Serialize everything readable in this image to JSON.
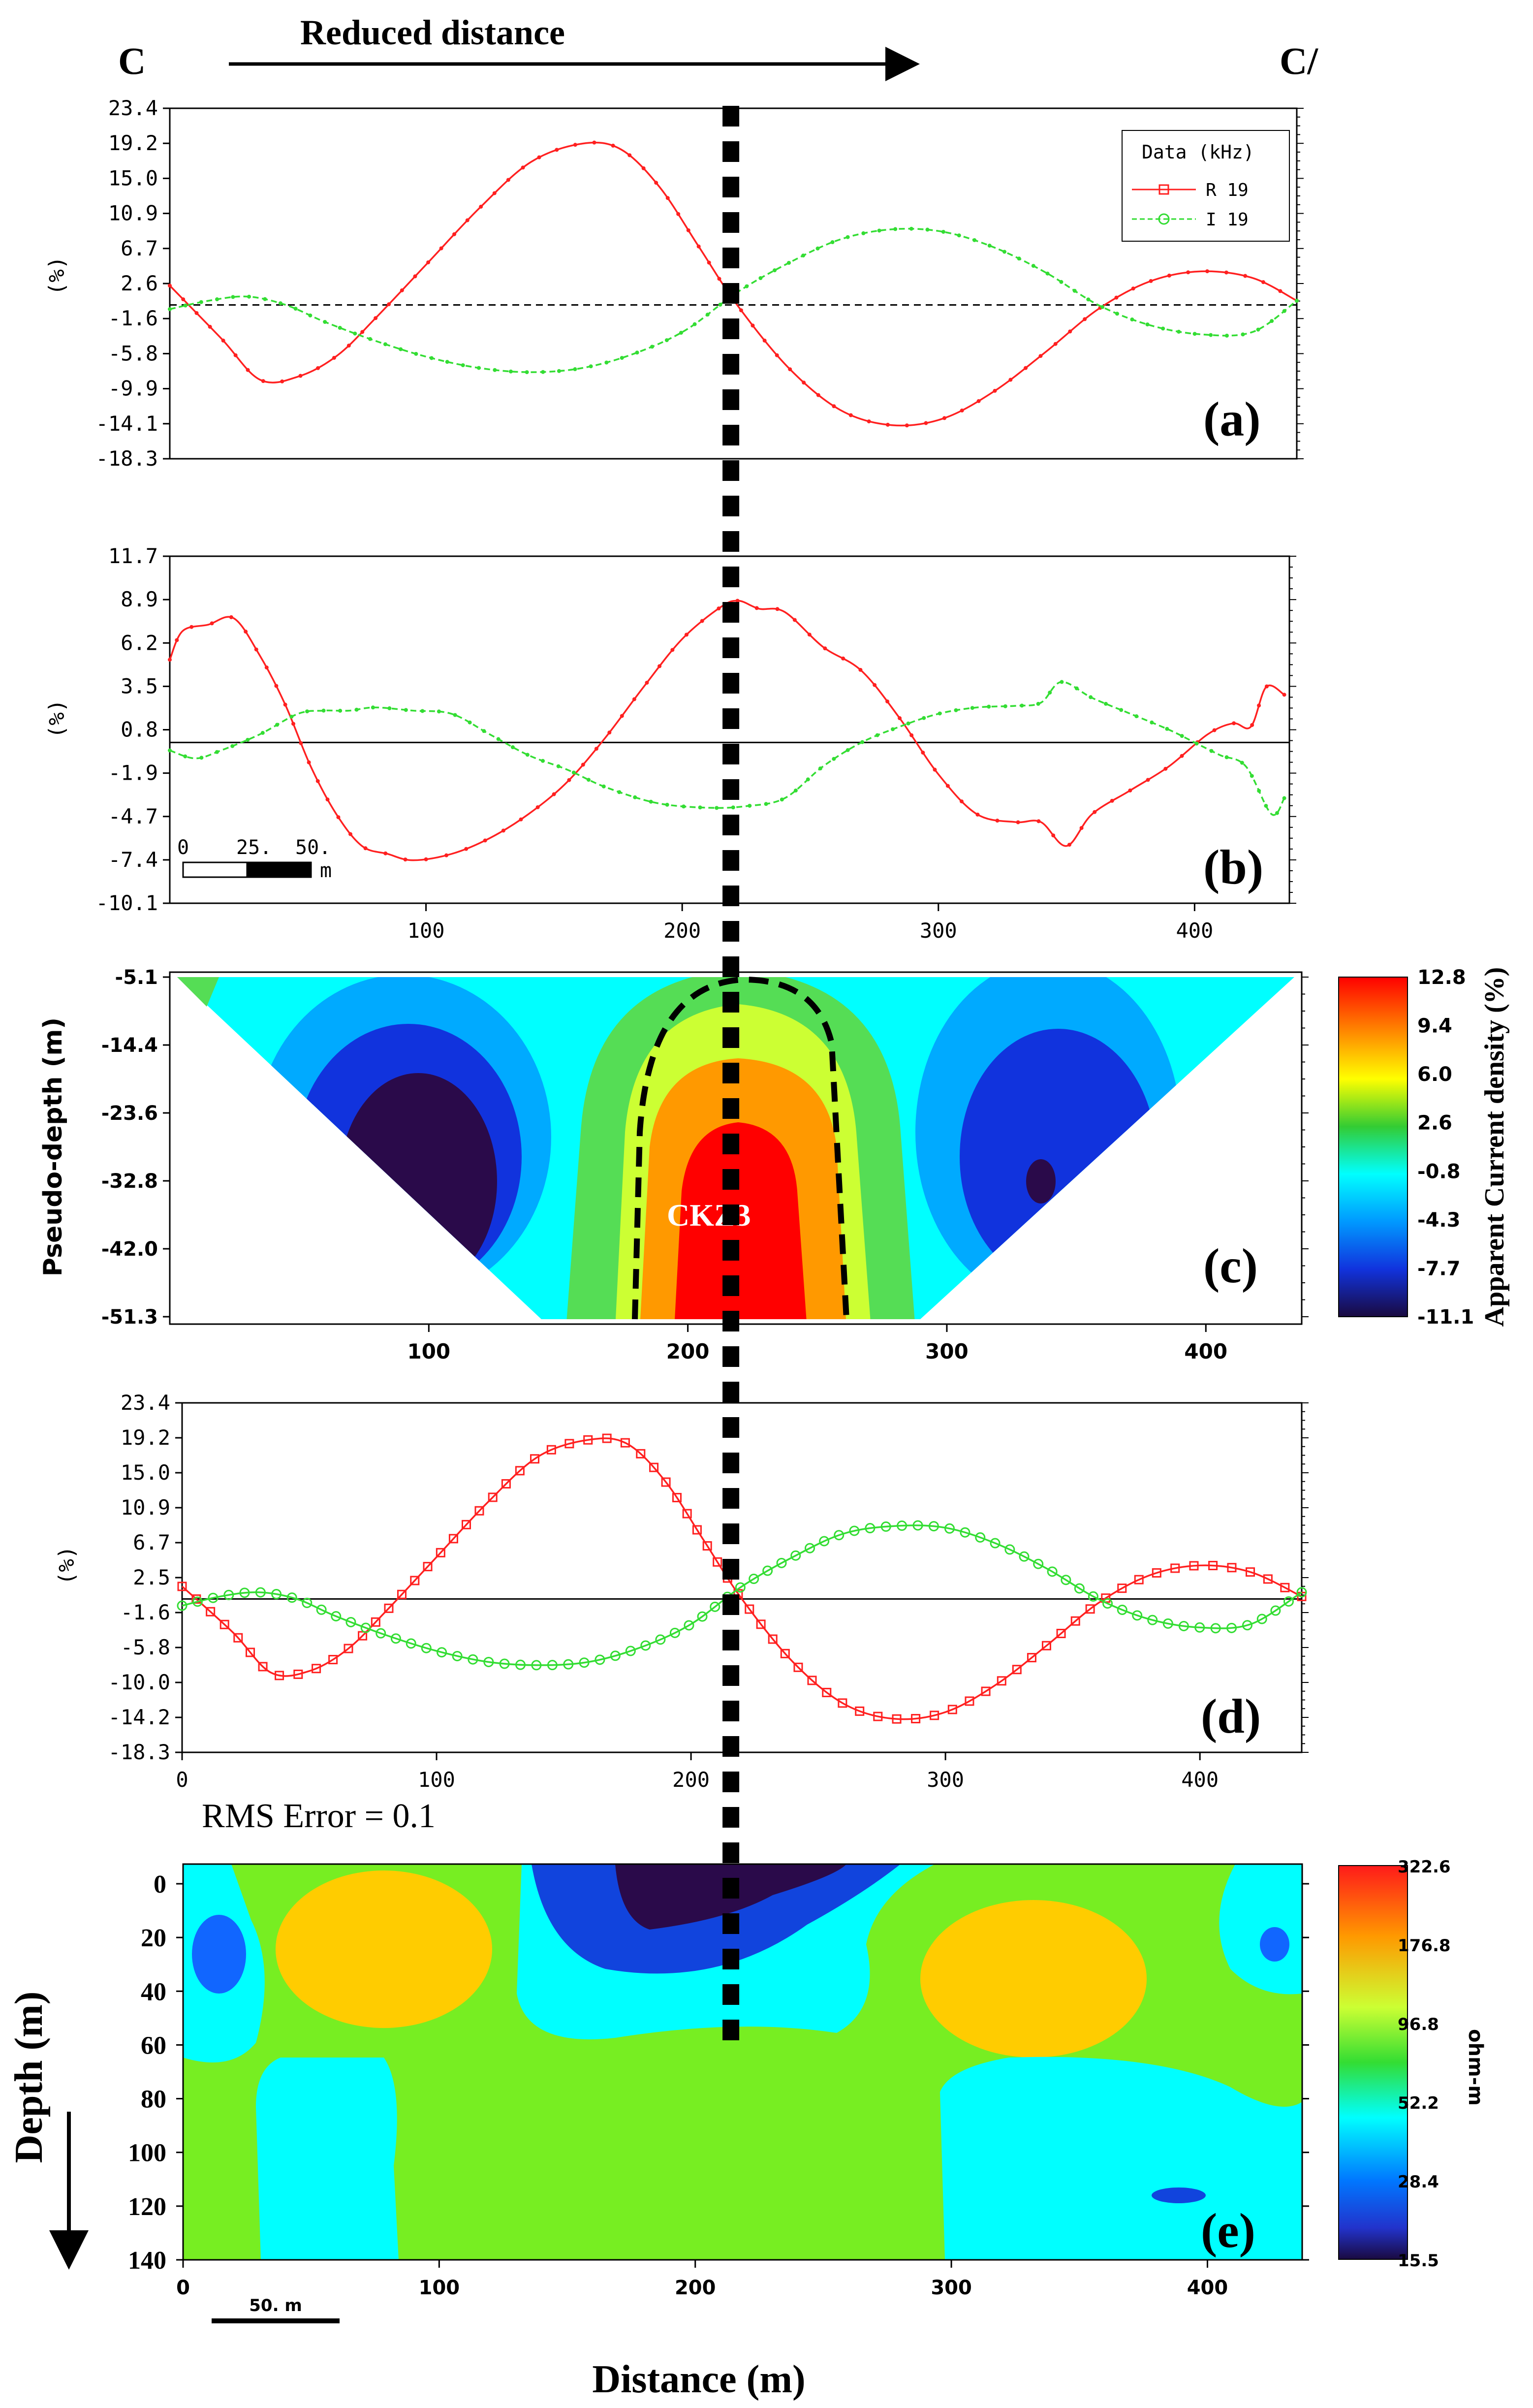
{
  "header": {
    "left_label": "C",
    "right_label": "C/",
    "arrow_label": "Reduced distance"
  },
  "colors": {
    "real": "#ff2020",
    "imag": "#33dd33",
    "marker": "#000000"
  },
  "marker_x": 219,
  "chart_data": [
    {
      "panel": "a",
      "type": "line",
      "letter": "(a)",
      "ylabel": "(%)",
      "xlim": [
        0,
        437
      ],
      "ylim": [
        -18.3,
        23.4
      ],
      "yticks": [
        "23.4",
        "19.2",
        "15.0",
        "10.9",
        "6.7",
        "2.6",
        "-1.6",
        "-5.8",
        "-9.9",
        "-14.1",
        "-18.3"
      ],
      "zero_line": "dashed",
      "legend": {
        "title": "Data (kHz)",
        "entries": [
          "R 19",
          "I 19"
        ]
      },
      "series": [
        {
          "name": "R 19",
          "color": "#ff2020",
          "points": [
            [
              0,
              2.3
            ],
            [
              20,
              -4
            ],
            [
              35,
              -8.9
            ],
            [
              50,
              -8.5
            ],
            [
              65,
              -6
            ],
            [
              80,
              -1.5
            ],
            [
              100,
              5
            ],
            [
              120,
              11.5
            ],
            [
              140,
              17
            ],
            [
              160,
              19.2
            ],
            [
              175,
              18.5
            ],
            [
              190,
              14
            ],
            [
              205,
              7
            ],
            [
              220,
              0
            ],
            [
              240,
              -7.5
            ],
            [
              260,
              -12.5
            ],
            [
              280,
              -14.3
            ],
            [
              300,
              -13.5
            ],
            [
              320,
              -10.2
            ],
            [
              340,
              -5.5
            ],
            [
              360,
              -0.5
            ],
            [
              380,
              2.8
            ],
            [
              400,
              4
            ],
            [
              420,
              3.2
            ],
            [
              437,
              0.5
            ]
          ]
        },
        {
          "name": "I 19",
          "color": "#33dd33",
          "points": [
            [
              0,
              -0.5
            ],
            [
              15,
              0.5
            ],
            [
              30,
              1
            ],
            [
              45,
              0
            ],
            [
              60,
              -2
            ],
            [
              80,
              -4.3
            ],
            [
              100,
              -6.2
            ],
            [
              120,
              -7.5
            ],
            [
              140,
              -8
            ],
            [
              160,
              -7.5
            ],
            [
              180,
              -5.8
            ],
            [
              200,
              -3
            ],
            [
              220,
              1.5
            ],
            [
              240,
              5
            ],
            [
              260,
              7.8
            ],
            [
              280,
              9
            ],
            [
              300,
              8.7
            ],
            [
              320,
              6.8
            ],
            [
              340,
              3.8
            ],
            [
              360,
              0
            ],
            [
              380,
              -2.4
            ],
            [
              400,
              -3.5
            ],
            [
              420,
              -3.2
            ],
            [
              437,
              0.5
            ]
          ]
        }
      ]
    },
    {
      "panel": "b",
      "type": "line",
      "letter": "(b)",
      "ylabel": "(%)",
      "xlim": [
        0,
        437
      ],
      "ylim": [
        -10.1,
        11.7
      ],
      "yticks": [
        "11.7",
        "8.9",
        "6.2",
        "3.5",
        "0.8",
        "-1.9",
        "-4.7",
        "-7.4",
        "-10.1"
      ],
      "xticks": [
        100,
        200,
        300,
        400
      ],
      "zero_line": "solid",
      "scale_bar": {
        "labels": [
          "0",
          "25.",
          "50."
        ],
        "unit": "m"
      },
      "series": [
        {
          "name": "R",
          "color": "#ff2020",
          "points": [
            [
              0,
              5.2
            ],
            [
              5,
              7
            ],
            [
              15,
              7.4
            ],
            [
              25,
              7.8
            ],
            [
              35,
              5.5
            ],
            [
              45,
              2.4
            ],
            [
              55,
              -1.5
            ],
            [
              65,
              -4.5
            ],
            [
              75,
              -6.5
            ],
            [
              85,
              -7
            ],
            [
              95,
              -7.4
            ],
            [
              110,
              -7
            ],
            [
              125,
              -6
            ],
            [
              140,
              -4.5
            ],
            [
              155,
              -2.5
            ],
            [
              170,
              0.3
            ],
            [
              185,
              3.5
            ],
            [
              200,
              6.5
            ],
            [
              215,
              8.5
            ],
            [
              222,
              8.9
            ],
            [
              230,
              8.4
            ],
            [
              240,
              8.2
            ],
            [
              255,
              6
            ],
            [
              270,
              4.5
            ],
            [
              285,
              1.5
            ],
            [
              300,
              -2
            ],
            [
              315,
              -4.5
            ],
            [
              330,
              -5
            ],
            [
              340,
              -5
            ],
            [
              350,
              -6.5
            ],
            [
              360,
              -4.5
            ],
            [
              375,
              -3
            ],
            [
              390,
              -1.5
            ],
            [
              405,
              0.5
            ],
            [
              415,
              1.2
            ],
            [
              422,
              1
            ],
            [
              428,
              3.5
            ],
            [
              435,
              3
            ]
          ]
        },
        {
          "name": "I",
          "color": "#33dd33",
          "points": [
            [
              0,
              -0.5
            ],
            [
              10,
              -1
            ],
            [
              20,
              -0.5
            ],
            [
              35,
              0.5
            ],
            [
              50,
              1.8
            ],
            [
              60,
              2
            ],
            [
              70,
              2
            ],
            [
              80,
              2.2
            ],
            [
              95,
              2
            ],
            [
              110,
              1.8
            ],
            [
              125,
              0.5
            ],
            [
              140,
              -0.8
            ],
            [
              155,
              -1.7
            ],
            [
              170,
              -2.8
            ],
            [
              190,
              -3.8
            ],
            [
              210,
              -4.1
            ],
            [
              225,
              -4
            ],
            [
              240,
              -3.5
            ],
            [
              255,
              -1.5
            ],
            [
              270,
              0
            ],
            [
              285,
              1
            ],
            [
              300,
              1.8
            ],
            [
              315,
              2.2
            ],
            [
              330,
              2.3
            ],
            [
              340,
              2.5
            ],
            [
              348,
              3.8
            ],
            [
              360,
              2.8
            ],
            [
              375,
              1.8
            ],
            [
              390,
              0.8
            ],
            [
              400,
              0
            ],
            [
              410,
              -0.8
            ],
            [
              420,
              -1.5
            ],
            [
              430,
              -4.5
            ],
            [
              435,
              -3.5
            ]
          ]
        }
      ]
    },
    {
      "panel": "c",
      "type": "heatmap",
      "letter": "(c)",
      "ylabel": "Pseudo-depth (m)",
      "yticks": [
        "-5.1",
        "-14.4",
        "-23.6",
        "-32.8",
        "-42.0",
        "-51.3"
      ],
      "xticks": [
        100,
        200,
        300,
        400
      ],
      "annotation": "CKZ3",
      "colorbar_title": "Apparent Current density (%)",
      "colorbar_ticks": [
        "12.8",
        "9.4",
        "6.0",
        "2.6",
        "-0.8",
        "-4.3",
        "-7.7",
        "-11.1"
      ]
    },
    {
      "panel": "d",
      "type": "line",
      "letter": "(d)",
      "ylabel": "(%)",
      "xlim": [
        0,
        440
      ],
      "ylim": [
        -18.3,
        23.4
      ],
      "yticks": [
        "23.4",
        "19.2",
        "15.0",
        "10.9",
        "6.7",
        "2.5",
        "-1.6",
        "-5.8",
        "-10.0",
        "-14.2",
        "-18.3"
      ],
      "xticks": [
        0,
        100,
        200,
        300,
        400
      ],
      "zero_line": "solid",
      "rms_text": "RMS Error = 0.1",
      "series": [
        {
          "name": "R",
          "color": "#ff2020",
          "points": [
            [
              0,
              1.5
            ],
            [
              20,
              -4
            ],
            [
              35,
              -8.8
            ],
            [
              50,
              -8.6
            ],
            [
              65,
              -6
            ],
            [
              80,
              -1.5
            ],
            [
              100,
              5
            ],
            [
              120,
              11.5
            ],
            [
              140,
              17
            ],
            [
              160,
              19
            ],
            [
              175,
              18.5
            ],
            [
              190,
              14
            ],
            [
              205,
              7
            ],
            [
              220,
              0
            ],
            [
              240,
              -7.5
            ],
            [
              260,
              -12.5
            ],
            [
              280,
              -14.3
            ],
            [
              300,
              -13.5
            ],
            [
              320,
              -10.2
            ],
            [
              340,
              -5.5
            ],
            [
              360,
              -0.5
            ],
            [
              380,
              2.8
            ],
            [
              400,
              4
            ],
            [
              420,
              3.2
            ],
            [
              440,
              0.3
            ]
          ]
        },
        {
          "name": "I",
          "color": "#33dd33",
          "points": [
            [
              0,
              -0.8
            ],
            [
              15,
              0.3
            ],
            [
              30,
              0.8
            ],
            [
              45,
              0
            ],
            [
              60,
              -2
            ],
            [
              80,
              -4.3
            ],
            [
              100,
              -6.2
            ],
            [
              120,
              -7.5
            ],
            [
              140,
              -7.9
            ],
            [
              160,
              -7.5
            ],
            [
              180,
              -5.8
            ],
            [
              200,
              -3
            ],
            [
              220,
              1.5
            ],
            [
              240,
              5
            ],
            [
              260,
              7.8
            ],
            [
              280,
              8.7
            ],
            [
              300,
              8.5
            ],
            [
              320,
              6.6
            ],
            [
              340,
              3.6
            ],
            [
              360,
              0
            ],
            [
              380,
              -2.4
            ],
            [
              400,
              -3.4
            ],
            [
              420,
              -3
            ],
            [
              440,
              0.8
            ]
          ]
        }
      ]
    },
    {
      "panel": "e",
      "type": "heatmap",
      "letter": "(e)",
      "ylabel": "Depth (m)",
      "xlabel": "Distance (m)",
      "yticks": [
        "0",
        "20",
        "40",
        "60",
        "80",
        "100",
        "120",
        "140"
      ],
      "xticks": [
        "0",
        "100",
        "200",
        "300",
        "400"
      ],
      "scale_bar_label": "50. m",
      "colorbar_title": "ohm-m",
      "colorbar_ticks": [
        "322.6",
        "176.8",
        "96.8",
        "52.2",
        "28.4",
        "15.5"
      ]
    }
  ]
}
